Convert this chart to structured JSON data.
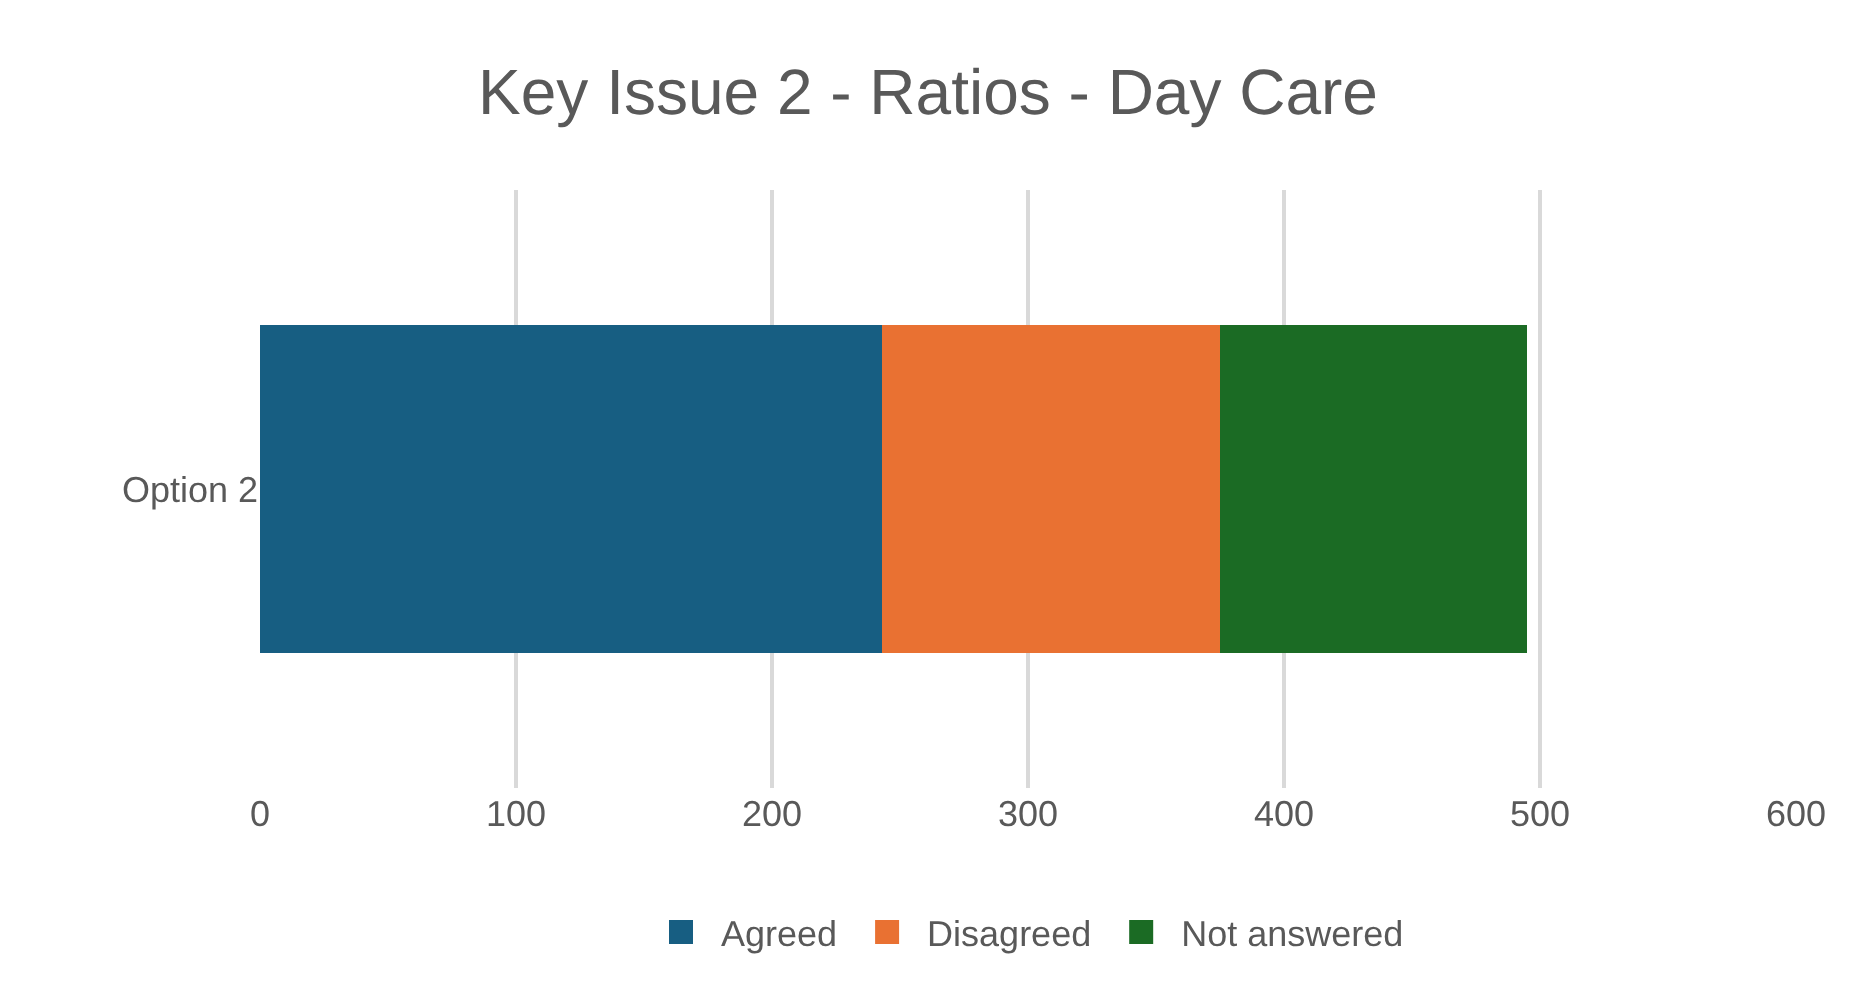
{
  "chart_data": {
    "type": "bar",
    "title": "Key Issue 2 - Ratios - Day Care",
    "orientation": "horizontal",
    "stacked": true,
    "categories": [
      "Option 2"
    ],
    "series": [
      {
        "name": "Agreed",
        "color": "#175e82",
        "values": [
          243
        ]
      },
      {
        "name": "Disagreed",
        "color": "#e97132",
        "values": [
          132
        ]
      },
      {
        "name": "Not answered",
        "color": "#1b6b24",
        "values": [
          120
        ]
      }
    ],
    "xlim": [
      0,
      600
    ],
    "xticks": [
      0,
      100,
      200,
      300,
      400,
      500,
      600
    ],
    "grid": "x",
    "legend": "bottom"
  }
}
